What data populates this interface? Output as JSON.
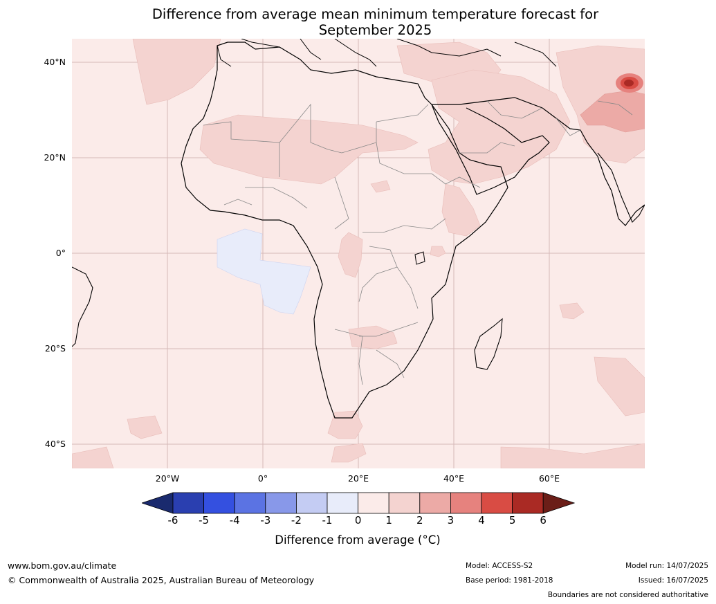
{
  "title_line1": "Difference from average mean minimum temperature forecast for",
  "title_line2": "September 2025",
  "lat_labels": [
    "40°N",
    "20°N",
    "0°",
    "20°S",
    "40°S"
  ],
  "lon_labels": [
    "20°W",
    "0°",
    "20°E",
    "40°E",
    "60°E"
  ],
  "colorbar": {
    "ticks": [
      "-6",
      "-5",
      "-4",
      "-3",
      "-2",
      "-1",
      "0",
      "1",
      "2",
      "3",
      "4",
      "5",
      "6"
    ],
    "colors": [
      "#1a2a6e",
      "#2a3fb0",
      "#3450e0",
      "#5b73e3",
      "#8898e9",
      "#c4ccf3",
      "#e8ecfa",
      "#fbebe9",
      "#f4d3d0",
      "#ecaaa6",
      "#e6827e",
      "#d94c44",
      "#aa2a24",
      "#6b1e18"
    ],
    "label": "Difference from average (°C)"
  },
  "footer": {
    "website": "www.bom.gov.au/climate",
    "copyright": "© Commonwealth of Australia 2025, Australian Bureau of Meteorology",
    "model": "Model: ACCESS-S2",
    "base_period": "Base period: 1981-2018",
    "model_run": "Model run: 14/07/2025",
    "issued": "Issued: 16/07/2025",
    "disclaimer": "Boundaries are not considered authoritative"
  }
}
